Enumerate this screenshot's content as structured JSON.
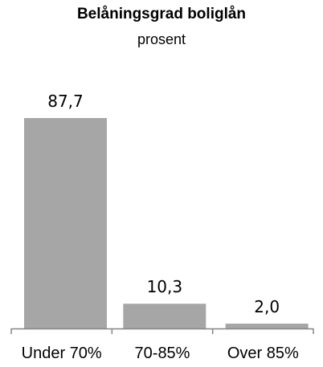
{
  "chart_data": {
    "type": "bar",
    "title": "Belåningsgrad boliglån",
    "subtitle": "prosent",
    "categories": [
      "Under 70%",
      "70-85%",
      "Over 85%"
    ],
    "values": [
      87.7,
      10.3,
      2.0
    ],
    "data_labels": [
      "87,7",
      "10,3",
      "2,0"
    ],
    "xlabel": "",
    "ylabel": "",
    "ylim": [
      0,
      100
    ],
    "grid": false,
    "legend": "none",
    "bar_color": "#a6a6a6",
    "axis_color": "#868686"
  }
}
